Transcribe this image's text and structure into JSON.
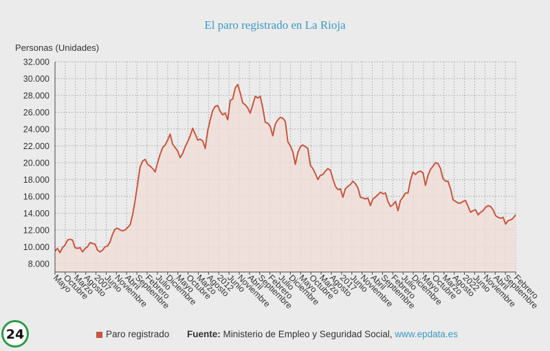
{
  "chart_data": {
    "type": "area",
    "title": "El paro registrado en La Rioja",
    "ylabel": "Personas (Unidades)",
    "ylim": [
      7000,
      32000
    ],
    "yticks": [
      "8.000",
      "10.000",
      "12.000",
      "14.000",
      "16.000",
      "18.000",
      "20.000",
      "22.000",
      "24.000",
      "26.000",
      "28.000",
      "30.000",
      "32.000"
    ],
    "ytick_values": [
      8000,
      10000,
      12000,
      14000,
      16000,
      18000,
      20000,
      22000,
      24000,
      26000,
      28000,
      30000,
      32000
    ],
    "xtick_labels": [
      "Mayo",
      "Octubre",
      "Marzo",
      "Agosto",
      "2007",
      "Junio",
      "Noviembre",
      "Abril",
      "Septiembre",
      "Febrero",
      "Julio",
      "Diciembre",
      "Mayo",
      "Octubre",
      "Marzo",
      "Agosto",
      "2012",
      "Junio",
      "Noviembre",
      "Abril",
      "Septiembre",
      "Febrero",
      "Julio",
      "Diciembre",
      "Mayo",
      "Octubre",
      "Marzo",
      "Agosto",
      "2017",
      "Junio",
      "Noviembre",
      "Abril",
      "Septiembre",
      "Febrero",
      "Julio",
      "Diciembre",
      "Mayo",
      "Octubre",
      "Marzo",
      "Agosto",
      "2022",
      "Junio",
      "Noviembre",
      "Abril",
      "Septiembre",
      "Febrero"
    ],
    "grid": true,
    "legend_position": "bottom",
    "colors": {
      "line": "#c8553d",
      "fill": "#f2dcd6",
      "grid": "#b5b5b5",
      "axis": "#444444"
    },
    "series": [
      {
        "name": "Paro registrado",
        "values": [
          9500,
          9800,
          9300,
          9900,
          10200,
          10800,
          10900,
          10800,
          9900,
          9800,
          9900,
          9400,
          9800,
          10000,
          10500,
          10400,
          10300,
          9600,
          9400,
          9600,
          10000,
          10100,
          10600,
          11500,
          12100,
          12200,
          12000,
          11900,
          12000,
          12300,
          12600,
          13800,
          15500,
          17500,
          19500,
          20200,
          20400,
          19800,
          19600,
          19300,
          18900,
          20000,
          21000,
          21800,
          22100,
          22700,
          23400,
          22200,
          21800,
          21400,
          20600,
          21100,
          21900,
          22500,
          23200,
          24100,
          23400,
          22700,
          22800,
          22600,
          21700,
          23800,
          25100,
          26200,
          26700,
          26800,
          26100,
          25700,
          25900,
          25100,
          27400,
          27600,
          28900,
          29300,
          28300,
          27100,
          26900,
          26500,
          25900,
          26900,
          27900,
          27700,
          27900,
          26500,
          24800,
          24700,
          24300,
          23200,
          24600,
          25100,
          25400,
          25300,
          24900,
          22500,
          22000,
          21300,
          19800,
          21200,
          21900,
          22100,
          21900,
          21700,
          19700,
          19300,
          18700,
          18000,
          18500,
          18600,
          19000,
          19300,
          19100,
          18100,
          17200,
          16800,
          16900,
          15900,
          16900,
          17200,
          17400,
          17800,
          17500,
          17000,
          15900,
          15800,
          15700,
          15800,
          14900,
          15700,
          15900,
          16200,
          16500,
          16300,
          16400,
          15400,
          14800,
          15000,
          15400,
          14300,
          15500,
          15900,
          16400,
          16400,
          17900,
          18900,
          18600,
          18900,
          19000,
          18800,
          17300,
          18500,
          19200,
          19600,
          20000,
          19900,
          19300,
          18100,
          17800,
          17800,
          16900,
          15600,
          15400,
          15200,
          15200,
          15400,
          15500,
          14800,
          14100,
          14300,
          14400,
          13800,
          14100,
          14300,
          14700,
          14900,
          14800,
          14400,
          13700,
          13500,
          13400,
          13500,
          12700,
          13100,
          13200,
          13400,
          13800
        ]
      }
    ]
  },
  "legend": {
    "label": "Paro registrado"
  },
  "source": {
    "prefix": "Fuente:",
    "text": " Ministerio de Empleo y Seguridad Social, ",
    "link": "www.epdata.es"
  },
  "logo": {
    "text": "24",
    "color": "#2d9a47"
  }
}
